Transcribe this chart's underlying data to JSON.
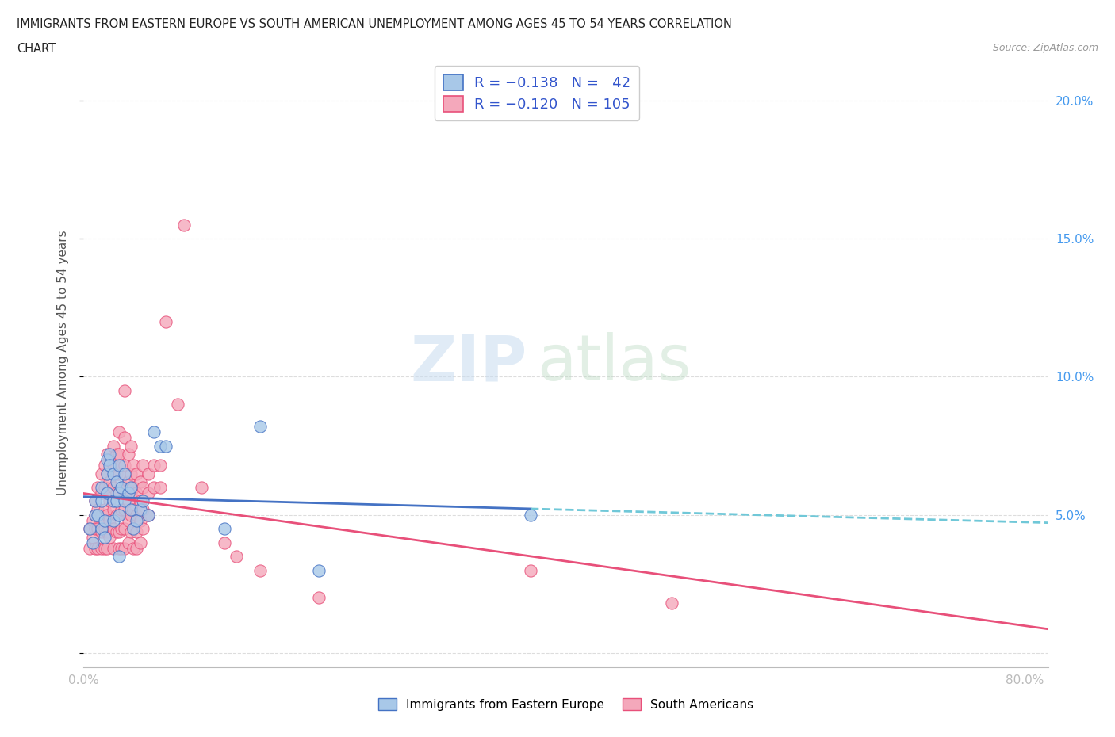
{
  "title_line1": "IMMIGRANTS FROM EASTERN EUROPE VS SOUTH AMERICAN UNEMPLOYMENT AMONG AGES 45 TO 54 YEARS CORRELATION",
  "title_line2": "CHART",
  "source": "Source: ZipAtlas.com",
  "ylabel": "Unemployment Among Ages 45 to 54 years",
  "xlim": [
    0.0,
    0.82
  ],
  "ylim": [
    -0.005,
    0.215
  ],
  "color_blue": "#A8C8E8",
  "color_pink": "#F4A8BB",
  "color_blue_line": "#4472C4",
  "color_pink_line": "#E8507A",
  "color_blue_dashed": "#70C8D8",
  "background_color": "#FFFFFF",
  "blue_points": [
    [
      0.005,
      0.045
    ],
    [
      0.008,
      0.04
    ],
    [
      0.01,
      0.05
    ],
    [
      0.01,
      0.055
    ],
    [
      0.012,
      0.05
    ],
    [
      0.015,
      0.06
    ],
    [
      0.015,
      0.055
    ],
    [
      0.015,
      0.045
    ],
    [
      0.018,
      0.048
    ],
    [
      0.018,
      0.042
    ],
    [
      0.02,
      0.07
    ],
    [
      0.02,
      0.065
    ],
    [
      0.02,
      0.058
    ],
    [
      0.022,
      0.072
    ],
    [
      0.022,
      0.068
    ],
    [
      0.025,
      0.065
    ],
    [
      0.025,
      0.055
    ],
    [
      0.025,
      0.048
    ],
    [
      0.028,
      0.062
    ],
    [
      0.028,
      0.055
    ],
    [
      0.03,
      0.068
    ],
    [
      0.03,
      0.058
    ],
    [
      0.03,
      0.05
    ],
    [
      0.03,
      0.035
    ],
    [
      0.032,
      0.06
    ],
    [
      0.035,
      0.065
    ],
    [
      0.035,
      0.055
    ],
    [
      0.038,
      0.058
    ],
    [
      0.04,
      0.06
    ],
    [
      0.04,
      0.052
    ],
    [
      0.042,
      0.045
    ],
    [
      0.045,
      0.048
    ],
    [
      0.048,
      0.052
    ],
    [
      0.05,
      0.055
    ],
    [
      0.055,
      0.05
    ],
    [
      0.06,
      0.08
    ],
    [
      0.065,
      0.075
    ],
    [
      0.07,
      0.075
    ],
    [
      0.12,
      0.045
    ],
    [
      0.15,
      0.082
    ],
    [
      0.2,
      0.03
    ],
    [
      0.38,
      0.05
    ]
  ],
  "pink_points": [
    [
      0.005,
      0.038
    ],
    [
      0.005,
      0.045
    ],
    [
      0.008,
      0.042
    ],
    [
      0.008,
      0.048
    ],
    [
      0.01,
      0.055
    ],
    [
      0.01,
      0.05
    ],
    [
      0.01,
      0.045
    ],
    [
      0.01,
      0.038
    ],
    [
      0.012,
      0.06
    ],
    [
      0.012,
      0.052
    ],
    [
      0.012,
      0.045
    ],
    [
      0.012,
      0.038
    ],
    [
      0.015,
      0.065
    ],
    [
      0.015,
      0.058
    ],
    [
      0.015,
      0.05
    ],
    [
      0.015,
      0.044
    ],
    [
      0.015,
      0.038
    ],
    [
      0.018,
      0.068
    ],
    [
      0.018,
      0.06
    ],
    [
      0.018,
      0.052
    ],
    [
      0.018,
      0.045
    ],
    [
      0.018,
      0.038
    ],
    [
      0.02,
      0.072
    ],
    [
      0.02,
      0.065
    ],
    [
      0.02,
      0.058
    ],
    [
      0.02,
      0.05
    ],
    [
      0.02,
      0.044
    ],
    [
      0.02,
      0.038
    ],
    [
      0.022,
      0.07
    ],
    [
      0.022,
      0.062
    ],
    [
      0.022,
      0.055
    ],
    [
      0.022,
      0.048
    ],
    [
      0.022,
      0.042
    ],
    [
      0.025,
      0.075
    ],
    [
      0.025,
      0.068
    ],
    [
      0.025,
      0.06
    ],
    [
      0.025,
      0.052
    ],
    [
      0.025,
      0.045
    ],
    [
      0.025,
      0.038
    ],
    [
      0.028,
      0.072
    ],
    [
      0.028,
      0.065
    ],
    [
      0.028,
      0.058
    ],
    [
      0.028,
      0.05
    ],
    [
      0.028,
      0.044
    ],
    [
      0.03,
      0.08
    ],
    [
      0.03,
      0.072
    ],
    [
      0.03,
      0.065
    ],
    [
      0.03,
      0.058
    ],
    [
      0.03,
      0.05
    ],
    [
      0.03,
      0.044
    ],
    [
      0.03,
      0.038
    ],
    [
      0.032,
      0.068
    ],
    [
      0.032,
      0.06
    ],
    [
      0.032,
      0.052
    ],
    [
      0.032,
      0.045
    ],
    [
      0.032,
      0.038
    ],
    [
      0.035,
      0.095
    ],
    [
      0.035,
      0.078
    ],
    [
      0.035,
      0.068
    ],
    [
      0.035,
      0.06
    ],
    [
      0.035,
      0.052
    ],
    [
      0.035,
      0.045
    ],
    [
      0.035,
      0.038
    ],
    [
      0.038,
      0.072
    ],
    [
      0.038,
      0.062
    ],
    [
      0.038,
      0.055
    ],
    [
      0.038,
      0.048
    ],
    [
      0.038,
      0.04
    ],
    [
      0.04,
      0.075
    ],
    [
      0.04,
      0.065
    ],
    [
      0.04,
      0.058
    ],
    [
      0.04,
      0.05
    ],
    [
      0.04,
      0.044
    ],
    [
      0.042,
      0.068
    ],
    [
      0.042,
      0.06
    ],
    [
      0.042,
      0.052
    ],
    [
      0.042,
      0.045
    ],
    [
      0.042,
      0.038
    ],
    [
      0.045,
      0.065
    ],
    [
      0.045,
      0.058
    ],
    [
      0.045,
      0.05
    ],
    [
      0.045,
      0.044
    ],
    [
      0.045,
      0.038
    ],
    [
      0.048,
      0.062
    ],
    [
      0.048,
      0.055
    ],
    [
      0.048,
      0.048
    ],
    [
      0.048,
      0.04
    ],
    [
      0.05,
      0.068
    ],
    [
      0.05,
      0.06
    ],
    [
      0.05,
      0.052
    ],
    [
      0.05,
      0.045
    ],
    [
      0.055,
      0.065
    ],
    [
      0.055,
      0.058
    ],
    [
      0.055,
      0.05
    ],
    [
      0.06,
      0.068
    ],
    [
      0.06,
      0.06
    ],
    [
      0.065,
      0.068
    ],
    [
      0.065,
      0.06
    ],
    [
      0.07,
      0.12
    ],
    [
      0.08,
      0.09
    ],
    [
      0.085,
      0.155
    ],
    [
      0.1,
      0.06
    ],
    [
      0.12,
      0.04
    ],
    [
      0.13,
      0.035
    ],
    [
      0.15,
      0.03
    ],
    [
      0.2,
      0.02
    ],
    [
      0.38,
      0.03
    ],
    [
      0.5,
      0.018
    ]
  ]
}
